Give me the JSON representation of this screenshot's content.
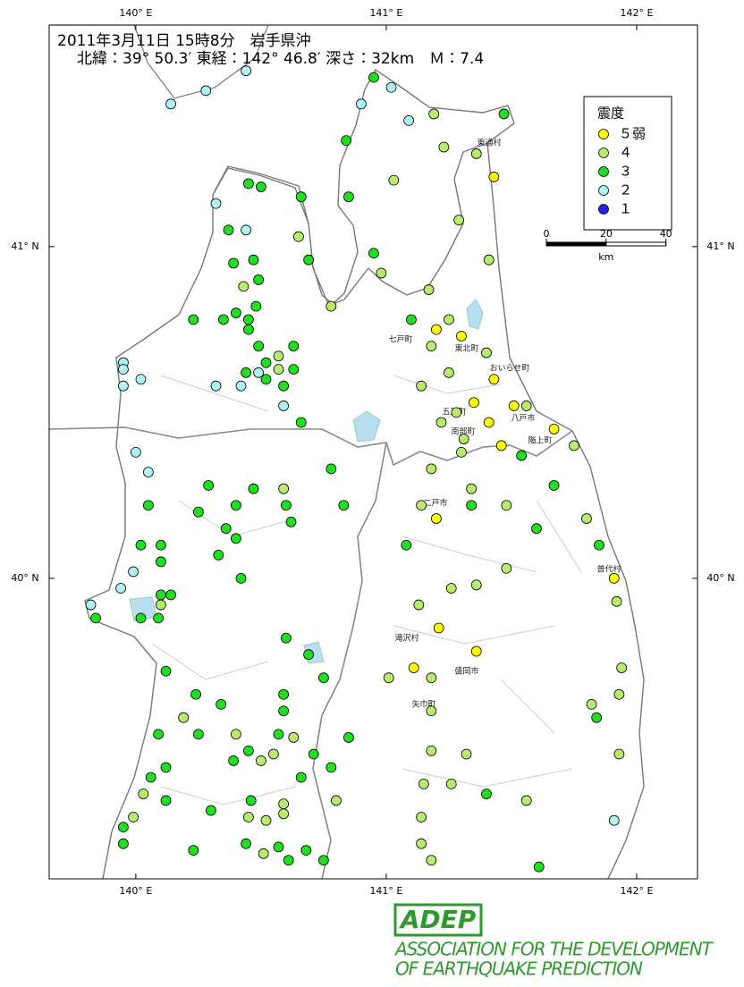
{
  "header": {
    "line1": "2011年3月11日 15時8分　岩手県沖",
    "line2": "北緯：39° 50.3′ 東経：142° 46.8′ 深さ：32km　Ｍ：7.4"
  },
  "map": {
    "lon_range": [
      139.654,
      142.243
    ],
    "lat_range": [
      39.094,
      41.668
    ],
    "lon_ticks": [
      {
        "value": 140,
        "label": "140° E"
      },
      {
        "value": 141,
        "label": "141° E"
      },
      {
        "value": 142,
        "label": "142° E"
      }
    ],
    "lat_ticks": [
      {
        "value": 41,
        "label": "41° N"
      },
      {
        "value": 40,
        "label": "40° N"
      }
    ],
    "stations": [
      [
        140.14,
        41.43,
        3
      ],
      [
        140.28,
        41.47,
        3
      ],
      [
        140.44,
        41.53,
        3
      ],
      [
        140.95,
        41.51,
        2
      ],
      [
        141.02,
        41.48,
        3
      ],
      [
        140.9,
        41.43,
        3
      ],
      [
        141.09,
        41.38,
        3
      ],
      [
        141.19,
        41.4,
        1
      ],
      [
        141.47,
        41.4,
        2
      ],
      [
        140.84,
        41.32,
        2
      ],
      [
        141.23,
        41.3,
        1
      ],
      [
        141.36,
        41.28,
        1
      ],
      [
        141.43,
        41.21,
        0
      ],
      [
        141.03,
        41.2,
        1
      ],
      [
        140.85,
        41.15,
        2
      ],
      [
        141.29,
        41.08,
        1
      ],
      [
        141.41,
        40.96,
        1
      ],
      [
        140.95,
        40.98,
        2
      ],
      [
        140.98,
        40.92,
        1
      ],
      [
        141.17,
        40.87,
        1
      ],
      [
        140.32,
        41.13,
        3
      ],
      [
        140.45,
        41.19,
        2
      ],
      [
        140.5,
        41.18,
        2
      ],
      [
        140.66,
        41.15,
        2
      ],
      [
        140.37,
        41.05,
        2
      ],
      [
        140.44,
        41.05,
        3
      ],
      [
        140.65,
        41.03,
        1
      ],
      [
        140.69,
        40.96,
        2
      ],
      [
        140.39,
        40.95,
        2
      ],
      [
        140.47,
        40.96,
        2
      ],
      [
        140.49,
        40.9,
        2
      ],
      [
        140.43,
        40.88,
        1
      ],
      [
        140.23,
        40.78,
        2
      ],
      [
        140.35,
        40.78,
        2
      ],
      [
        140.4,
        40.8,
        2
      ],
      [
        140.48,
        40.82,
        2
      ],
      [
        140.45,
        40.78,
        2
      ],
      [
        140.45,
        40.75,
        2
      ],
      [
        140.78,
        40.82,
        1
      ],
      [
        140.49,
        40.7,
        2
      ],
      [
        140.63,
        40.7,
        2
      ],
      [
        140.57,
        40.67,
        1
      ],
      [
        140.44,
        40.62,
        2
      ],
      [
        140.49,
        40.62,
        3
      ],
      [
        140.52,
        40.65,
        2
      ],
      [
        140.57,
        40.63,
        1
      ],
      [
        140.63,
        40.63,
        2
      ],
      [
        140.52,
        40.6,
        2
      ],
      [
        140.59,
        40.58,
        2
      ],
      [
        140.32,
        40.58,
        3
      ],
      [
        140.42,
        40.58,
        3
      ],
      [
        140.59,
        40.52,
        3
      ],
      [
        140.66,
        40.47,
        2
      ],
      [
        139.95,
        40.65,
        3
      ],
      [
        139.95,
        40.63,
        3
      ],
      [
        139.95,
        40.58,
        3
      ],
      [
        140.02,
        40.6,
        3
      ],
      [
        141.1,
        40.78,
        2
      ],
      [
        141.2,
        40.75,
        0
      ],
      [
        141.25,
        40.78,
        1
      ],
      [
        141.3,
        40.73,
        0
      ],
      [
        141.18,
        40.7,
        1
      ],
      [
        141.4,
        40.68,
        1
      ],
      [
        141.25,
        40.62,
        1
      ],
      [
        141.14,
        40.58,
        1
      ],
      [
        141.43,
        40.6,
        0
      ],
      [
        141.35,
        40.53,
        0
      ],
      [
        141.51,
        40.52,
        0
      ],
      [
        141.56,
        40.52,
        1
      ],
      [
        141.28,
        40.5,
        1
      ],
      [
        141.22,
        40.47,
        1
      ],
      [
        141.41,
        40.47,
        0
      ],
      [
        141.67,
        40.45,
        0
      ],
      [
        141.31,
        40.42,
        1
      ],
      [
        141.46,
        40.4,
        0
      ],
      [
        141.3,
        40.38,
        1
      ],
      [
        141.54,
        40.37,
        2
      ],
      [
        141.75,
        40.4,
        1
      ],
      [
        140.0,
        40.38,
        3
      ],
      [
        140.05,
        40.32,
        3
      ],
      [
        140.29,
        40.28,
        2
      ],
      [
        140.47,
        40.27,
        2
      ],
      [
        140.59,
        40.27,
        1
      ],
      [
        140.78,
        40.33,
        2
      ],
      [
        140.05,
        40.22,
        2
      ],
      [
        140.25,
        40.2,
        2
      ],
      [
        140.4,
        40.22,
        2
      ],
      [
        140.6,
        40.22,
        2
      ],
      [
        140.83,
        40.22,
        2
      ],
      [
        140.36,
        40.15,
        2
      ],
      [
        140.4,
        40.12,
        2
      ],
      [
        140.02,
        40.1,
        2
      ],
      [
        140.1,
        40.1,
        2
      ],
      [
        140.62,
        40.17,
        2
      ],
      [
        140.33,
        40.07,
        2
      ],
      [
        140.1,
        40.05,
        2
      ],
      [
        140.42,
        40.0,
        2
      ],
      [
        139.99,
        40.02,
        3
      ],
      [
        139.94,
        39.97,
        3
      ],
      [
        140.1,
        39.95,
        2
      ],
      [
        140.14,
        39.95,
        2
      ],
      [
        140.1,
        39.92,
        1
      ],
      [
        139.82,
        39.92,
        3
      ],
      [
        139.84,
        39.88,
        2
      ],
      [
        140.02,
        39.88,
        2
      ],
      [
        140.09,
        39.88,
        2
      ],
      [
        140.6,
        39.82,
        2
      ],
      [
        140.69,
        39.77,
        2
      ],
      [
        140.75,
        39.7,
        2
      ],
      [
        140.12,
        39.72,
        2
      ],
      [
        140.24,
        39.65,
        2
      ],
      [
        140.34,
        39.62,
        2
      ],
      [
        140.59,
        39.65,
        2
      ],
      [
        140.59,
        39.6,
        2
      ],
      [
        140.19,
        39.58,
        1
      ],
      [
        140.09,
        39.53,
        2
      ],
      [
        140.25,
        39.53,
        2
      ],
      [
        140.4,
        39.53,
        1
      ],
      [
        140.57,
        39.53,
        2
      ],
      [
        140.63,
        39.52,
        1
      ],
      [
        140.85,
        39.52,
        2
      ],
      [
        140.45,
        39.48,
        2
      ],
      [
        140.55,
        39.47,
        1
      ],
      [
        140.39,
        39.45,
        2
      ],
      [
        140.5,
        39.45,
        1
      ],
      [
        140.71,
        39.47,
        2
      ],
      [
        140.12,
        39.43,
        2
      ],
      [
        140.78,
        39.43,
        2
      ],
      [
        140.06,
        39.4,
        2
      ],
      [
        140.66,
        39.4,
        2
      ],
      [
        140.03,
        39.35,
        1
      ],
      [
        140.46,
        39.33,
        2
      ],
      [
        140.59,
        39.32,
        1
      ],
      [
        140.8,
        39.33,
        1
      ],
      [
        140.12,
        39.33,
        2
      ],
      [
        140.3,
        39.3,
        2
      ],
      [
        140.45,
        39.28,
        1
      ],
      [
        140.52,
        39.27,
        1
      ],
      [
        140.59,
        39.29,
        1
      ],
      [
        139.99,
        39.28,
        1
      ],
      [
        139.95,
        39.25,
        2
      ],
      [
        139.95,
        39.2,
        2
      ],
      [
        140.23,
        39.18,
        2
      ],
      [
        140.44,
        39.2,
        2
      ],
      [
        140.51,
        39.17,
        1
      ],
      [
        140.57,
        39.19,
        2
      ],
      [
        140.68,
        39.18,
        2
      ],
      [
        140.75,
        39.15,
        2
      ],
      [
        140.61,
        39.15,
        2
      ],
      [
        141.18,
        40.33,
        1
      ],
      [
        141.34,
        40.27,
        1
      ],
      [
        141.67,
        40.28,
        2
      ],
      [
        141.14,
        40.22,
        1
      ],
      [
        141.34,
        40.22,
        2
      ],
      [
        141.48,
        40.22,
        1
      ],
      [
        141.2,
        40.18,
        0
      ],
      [
        141.8,
        40.18,
        1
      ],
      [
        141.6,
        40.15,
        2
      ],
      [
        141.85,
        40.1,
        2
      ],
      [
        141.08,
        40.1,
        2
      ],
      [
        141.48,
        40.03,
        1
      ],
      [
        141.91,
        40.0,
        0
      ],
      [
        141.26,
        39.97,
        1
      ],
      [
        141.36,
        39.98,
        1
      ],
      [
        141.13,
        39.92,
        1
      ],
      [
        141.92,
        39.93,
        1
      ],
      [
        141.21,
        39.85,
        0
      ],
      [
        141.36,
        39.78,
        0
      ],
      [
        141.11,
        39.73,
        0
      ],
      [
        141.18,
        39.7,
        1
      ],
      [
        141.01,
        39.7,
        1
      ],
      [
        141.94,
        39.73,
        1
      ],
      [
        141.93,
        39.65,
        1
      ],
      [
        141.18,
        39.6,
        1
      ],
      [
        141.82,
        39.62,
        1
      ],
      [
        141.84,
        39.58,
        2
      ],
      [
        141.18,
        39.48,
        1
      ],
      [
        141.32,
        39.47,
        1
      ],
      [
        141.93,
        39.47,
        1
      ],
      [
        141.15,
        39.38,
        1
      ],
      [
        141.26,
        39.38,
        1
      ],
      [
        141.4,
        39.35,
        2
      ],
      [
        141.56,
        39.33,
        1
      ],
      [
        141.14,
        39.28,
        1
      ],
      [
        141.91,
        39.27,
        3
      ],
      [
        141.14,
        39.2,
        1
      ],
      [
        141.18,
        39.15,
        1
      ],
      [
        141.61,
        39.13,
        2
      ]
    ]
  },
  "towns": [
    "東通村",
    "七戸町",
    "東北町",
    "おいらせ町",
    "五戸町",
    "八戸市",
    "南部町",
    "階上町",
    "二戸市",
    "普代村",
    "滝沢村",
    "盛岡市",
    "矢巾町"
  ],
  "legend": {
    "title": "震度",
    "items": [
      {
        "label": "５弱",
        "color": "#ffff00"
      },
      {
        "label": "４",
        "color": "#b8ec6c"
      },
      {
        "label": "３",
        "color": "#1ee01e"
      },
      {
        "label": "２",
        "color": "#aef4f4"
      },
      {
        "label": "１",
        "color": "#2222ee"
      }
    ]
  },
  "scale_bar": {
    "ticks": [
      0,
      20,
      40
    ],
    "unit": "km"
  },
  "footer": {
    "logo": "ADEP",
    "line1": "ASSOCIATION  FOR THE DEVELOPMENT",
    "line2": "OF EARTHQUAKE PREDICTION"
  }
}
